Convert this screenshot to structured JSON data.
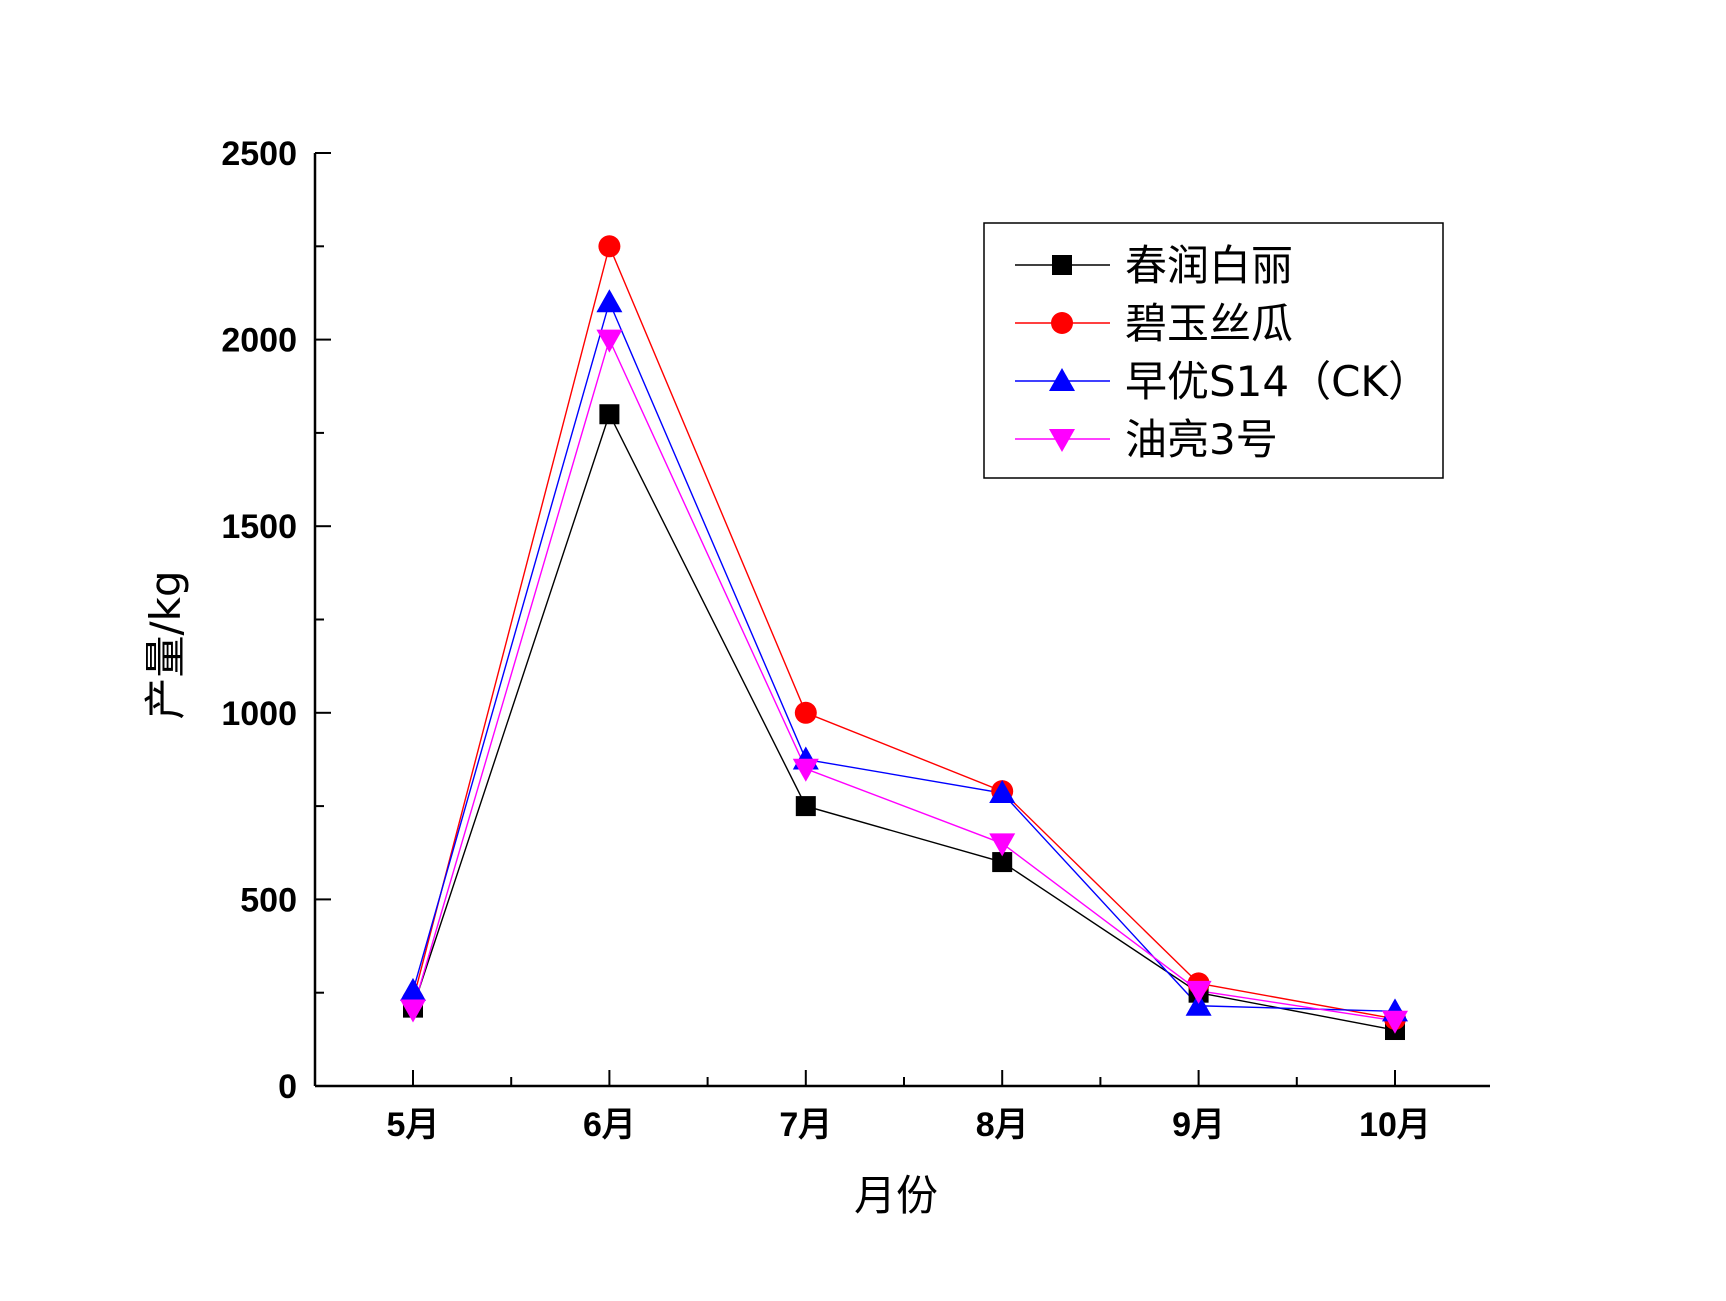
{
  "chart_data": {
    "type": "line",
    "categories": [
      "5月",
      "6月",
      "7月",
      "8月",
      "9月",
      "10月"
    ],
    "xlabel": "月份",
    "ylabel": "产量/kg",
    "ylim": [
      0,
      2500
    ],
    "yticks": [
      0,
      500,
      1000,
      1500,
      2000,
      2500
    ],
    "grid": false,
    "legend_position": "top-right",
    "series": [
      {
        "name": "春润白丽",
        "color": "#000000",
        "marker": "square",
        "values": [
          210,
          1800,
          750,
          600,
          250,
          150
        ]
      },
      {
        "name": "碧玉丝瓜",
        "color": "#ff0000",
        "marker": "circle",
        "values": [
          230,
          2250,
          1000,
          790,
          275,
          180
        ]
      },
      {
        "name": "早优S14（CK）",
        "color": "#0000ff",
        "marker": "triangle-up",
        "values": [
          255,
          2100,
          875,
          785,
          215,
          200
        ]
      },
      {
        "name": "油亮3号",
        "color": "#ff00ff",
        "marker": "triangle-down",
        "values": [
          205,
          2000,
          850,
          650,
          255,
          175
        ]
      }
    ]
  }
}
